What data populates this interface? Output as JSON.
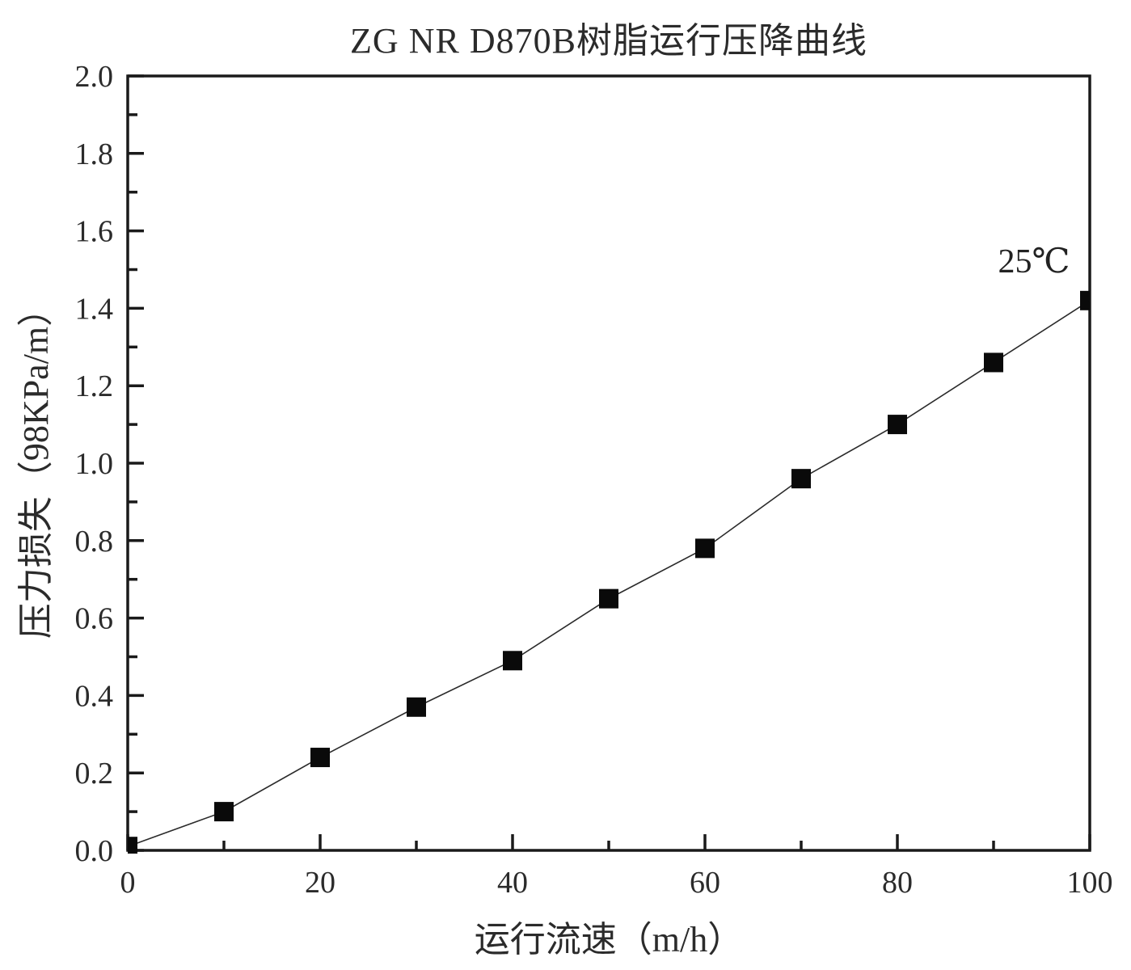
{
  "page": {
    "background": "#ffffff"
  },
  "chart_data": {
    "type": "line",
    "title": "ZG NR D870B树脂运行压降曲线",
    "xlabel": "运行流速（m/h）",
    "ylabel": "压力损失（98KPa/m）",
    "annotation": "25℃",
    "series": [
      {
        "name": "25℃",
        "x": [
          0,
          10,
          20,
          30,
          40,
          50,
          60,
          70,
          80,
          90,
          100
        ],
        "y": [
          0.01,
          0.1,
          0.24,
          0.37,
          0.49,
          0.65,
          0.78,
          0.96,
          1.1,
          1.26,
          1.42
        ],
        "marker": "square",
        "marker_size": 24,
        "marker_color": "#0a0a0a",
        "line_color": "#2a2a2a",
        "line_width": 1.6
      }
    ],
    "xlim": [
      0,
      100
    ],
    "ylim": [
      0.0,
      2.0
    ],
    "x_major_ticks": [
      0,
      20,
      40,
      60,
      80,
      100
    ],
    "x_minor_ticks": [
      10,
      30,
      50,
      70,
      90
    ],
    "y_major_ticks": [
      0.0,
      0.2,
      0.4,
      0.6,
      0.8,
      1.0,
      1.2,
      1.4,
      1.6,
      1.8,
      2.0
    ],
    "y_minor_ticks": [
      0.1,
      0.3,
      0.5,
      0.7,
      0.9,
      1.1,
      1.3,
      1.5,
      1.7,
      1.9
    ],
    "y_tick_decimals": 1,
    "grid": false,
    "legend_position": "none",
    "frame": "box",
    "tick_direction": "in",
    "axis_color": "#1a1a1a"
  }
}
